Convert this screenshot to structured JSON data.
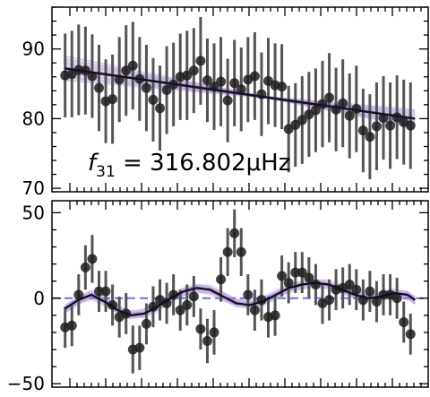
{
  "chart_data": [
    {
      "type": "scatter",
      "panel": "top",
      "annotation": {
        "symbol": "f",
        "subscript": "31",
        "text": " = 316.802μHz"
      },
      "ylim": [
        69.5,
        96
      ],
      "yticks": [
        70,
        80,
        90
      ],
      "xlim": [
        0,
        1
      ],
      "grid": false,
      "colors": {
        "points": "#1e1e1e",
        "errorbars": "#555555",
        "fit": "#1a0f24",
        "fit_samples": "#9b7fd4"
      },
      "fit_line": {
        "x": [
          0.035,
          0.965
        ],
        "y": [
          87.2,
          80.0
        ]
      },
      "points": {
        "x": [
          0.035,
          0.053,
          0.071,
          0.089,
          0.107,
          0.125,
          0.143,
          0.161,
          0.179,
          0.197,
          0.215,
          0.233,
          0.251,
          0.269,
          0.287,
          0.305,
          0.323,
          0.341,
          0.359,
          0.377,
          0.395,
          0.413,
          0.431,
          0.449,
          0.467,
          0.485,
          0.503,
          0.521,
          0.539,
          0.557,
          0.575,
          0.593,
          0.611,
          0.629,
          0.647,
          0.665,
          0.683,
          0.701,
          0.719,
          0.737,
          0.755,
          0.773,
          0.791,
          0.809,
          0.827,
          0.845,
          0.863,
          0.881,
          0.899,
          0.917,
          0.935,
          0.953
        ],
        "y": [
          86.2,
          86.4,
          87.0,
          86.9,
          86.1,
          84.4,
          82.5,
          82.8,
          85.6,
          86.9,
          87.6,
          85.7,
          84.4,
          82.7,
          81.5,
          84.1,
          84.9,
          86.0,
          86.2,
          86.9,
          88.3,
          85.5,
          84.6,
          85.3,
          82.6,
          85.1,
          84.2,
          85.6,
          86.1,
          83.5,
          85.4,
          84.8,
          84.6,
          78.5,
          79.1,
          79.8,
          80.6,
          81.2,
          82.1,
          83.0,
          81.3,
          82.2,
          80.4,
          81.4,
          78.3,
          77.4,
          78.9,
          80.1,
          79.0,
          80.2,
          79.5,
          79.0
        ],
        "err": [
          6,
          6.2,
          6.5,
          6.3,
          6,
          6.2,
          6,
          6.4,
          6.1,
          6.5,
          6.3,
          6,
          6.2,
          6,
          6.1,
          6.3,
          6,
          6.2,
          6.4,
          6.1,
          6.3,
          6,
          6.2,
          6.4,
          6,
          6.2,
          6,
          6.1,
          6.3,
          6,
          6.2,
          6,
          6.1,
          6.2,
          6,
          6.3,
          6.1,
          6,
          6.2,
          6.4,
          6,
          6.3,
          6.1,
          6.2,
          6,
          6.1,
          6.3,
          6,
          6.2,
          6,
          6.1,
          6.2
        ]
      }
    },
    {
      "type": "scatter",
      "panel": "bottom",
      "ylim": [
        -52,
        57
      ],
      "yticks": [
        -50,
        0,
        50
      ],
      "xlim": [
        0,
        1
      ],
      "grid": false,
      "reference_line": {
        "y": 0,
        "style": "dashed",
        "color": "#6b72e0"
      },
      "colors": {
        "points": "#1e1e1e",
        "errorbars": "#555555",
        "fit": "#140a1c",
        "fit_samples": "#9b7fd4",
        "zero_line": "#2c2ca8"
      },
      "fit_curve": {
        "x": [
          0.035,
          0.07,
          0.105,
          0.14,
          0.175,
          0.21,
          0.245,
          0.28,
          0.315,
          0.35,
          0.385,
          0.42,
          0.455,
          0.49,
          0.525,
          0.56,
          0.595,
          0.63,
          0.665,
          0.7,
          0.735,
          0.77,
          0.805,
          0.84,
          0.875,
          0.91,
          0.945,
          0.965
        ],
        "y": [
          -6,
          -1,
          2,
          -2,
          -7,
          -10,
          -9,
          -5,
          0,
          4,
          6,
          5,
          1,
          -3,
          -4,
          -2,
          2,
          6,
          8,
          9,
          8,
          5,
          2,
          0,
          1,
          3,
          2,
          -1
        ]
      },
      "points": {
        "x": [
          0.035,
          0.053,
          0.071,
          0.089,
          0.107,
          0.125,
          0.143,
          0.161,
          0.179,
          0.197,
          0.215,
          0.233,
          0.251,
          0.269,
          0.287,
          0.305,
          0.323,
          0.341,
          0.359,
          0.377,
          0.395,
          0.413,
          0.431,
          0.449,
          0.467,
          0.485,
          0.503,
          0.521,
          0.539,
          0.557,
          0.575,
          0.593,
          0.611,
          0.629,
          0.647,
          0.665,
          0.683,
          0.701,
          0.719,
          0.737,
          0.755,
          0.773,
          0.791,
          0.809,
          0.827,
          0.845,
          0.863,
          0.881,
          0.899,
          0.917,
          0.935,
          0.953
        ],
        "y": [
          -17,
          -16,
          2,
          18,
          23,
          4,
          4,
          -4,
          -11,
          -9,
          -30,
          -29,
          -15,
          -5,
          -1,
          -3,
          2,
          -7,
          -4,
          1,
          -18,
          -25,
          -20,
          11,
          27,
          38,
          27,
          2,
          -7,
          -1,
          -11,
          -10,
          13,
          9,
          15,
          15,
          12,
          8,
          -3,
          -1,
          5,
          6,
          8,
          5,
          -1,
          4,
          -2,
          2,
          2,
          0,
          -14,
          -21
        ],
        "err": [
          12,
          12,
          12,
          13,
          14,
          12,
          12,
          12,
          12,
          12,
          14,
          13,
          12,
          12,
          12,
          12,
          12,
          12,
          12,
          12,
          12,
          13,
          13,
          13,
          14,
          14,
          14,
          12,
          12,
          12,
          12,
          12,
          12,
          12,
          12,
          12,
          12,
          12,
          12,
          12,
          12,
          12,
          12,
          12,
          12,
          12,
          12,
          12,
          12,
          12,
          12,
          12
        ]
      }
    }
  ]
}
